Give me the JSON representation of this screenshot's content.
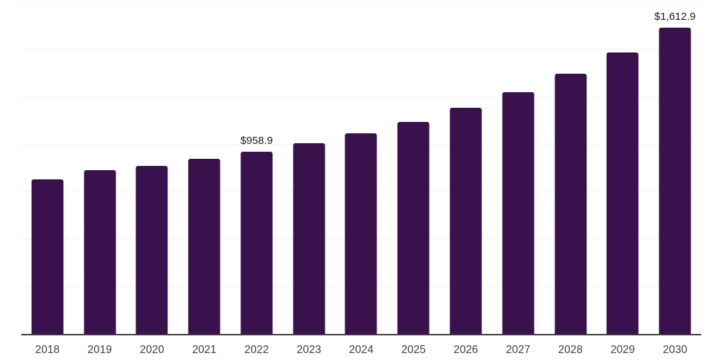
{
  "chart_data": {
    "type": "bar",
    "title": "",
    "categories": [
      "2018",
      "2019",
      "2020",
      "2021",
      "2022",
      "2023",
      "2024",
      "2025",
      "2026",
      "2027",
      "2028",
      "2029",
      "2030"
    ],
    "values": [
      814,
      862,
      885,
      920,
      958.9,
      1003,
      1056,
      1115,
      1189,
      1271,
      1368,
      1483,
      1612.9
    ],
    "data_labels": {
      "2022": "$958.9",
      "2030": "$1,612.9"
    },
    "xlabel": "",
    "ylabel": "",
    "ylim": [
      0,
      1750
    ],
    "gridline_step": 250,
    "y_tick_labels_visible": false,
    "legend": "none",
    "colors": {
      "bar": "#38114d",
      "gridline": "#f2f2f2",
      "axis_line": "#3c3c3c",
      "data_label_text": "#1a1a1a",
      "x_tick_text": "#3f3f3f",
      "background": "#ffffff"
    }
  }
}
